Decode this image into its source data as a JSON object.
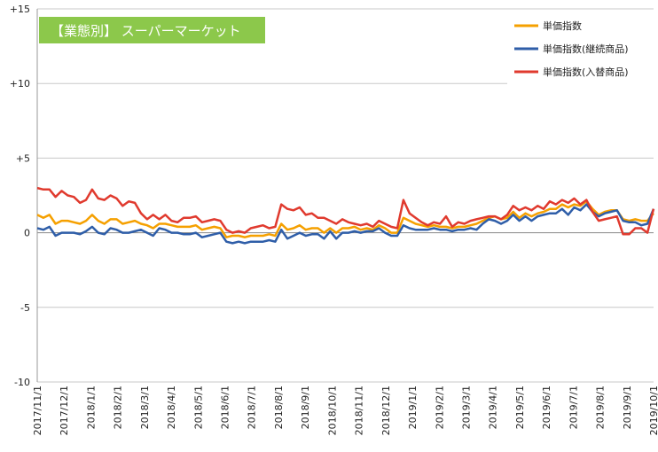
{
  "chart_data": {
    "type": "line",
    "title_box": {
      "label": "【業態別】 スーパーマーケット",
      "color": "#8cc84b"
    },
    "ylim": [
      -10,
      15
    ],
    "y_ticks": [
      {
        "value": 15,
        "label": "+15"
      },
      {
        "value": 10,
        "label": "+10"
      },
      {
        "value": 5,
        "label": "+5"
      },
      {
        "value": 0,
        "label": "0"
      },
      {
        "value": -5,
        "label": "-5"
      },
      {
        "value": -10,
        "label": "-10"
      }
    ],
    "x_tick_labels": [
      "2017/11/1",
      "2017/12/1",
      "2018/1/1",
      "2018/2/1",
      "2018/3/1",
      "2018/4/1",
      "2018/5/1",
      "2018/6/1",
      "2018/7/1",
      "2018/8/1",
      "2018/9/1",
      "2018/10/1",
      "2018/11/1",
      "2018/12/1",
      "2019/1/1",
      "2019/2/1",
      "2019/3/1",
      "2019/4/1",
      "2019/5/1",
      "2019/6/1",
      "2019/7/1",
      "2019/8/1",
      "2019/9/1",
      "2019/10/1"
    ],
    "legend": "top-right",
    "grid": "horizontal",
    "series": [
      {
        "name": "単価指数",
        "color": "#f5a000",
        "values": [
          1.2,
          1.0,
          1.2,
          0.6,
          0.8,
          0.8,
          0.7,
          0.6,
          0.8,
          1.2,
          0.8,
          0.6,
          0.9,
          0.9,
          0.6,
          0.7,
          0.8,
          0.6,
          0.5,
          0.3,
          0.6,
          0.6,
          0.5,
          0.4,
          0.4,
          0.4,
          0.5,
          0.2,
          0.3,
          0.4,
          0.3,
          -0.3,
          -0.2,
          -0.2,
          -0.3,
          -0.2,
          -0.2,
          -0.2,
          -0.1,
          -0.2,
          0.6,
          0.2,
          0.3,
          0.5,
          0.2,
          0.3,
          0.3,
          0.0,
          0.3,
          0.0,
          0.3,
          0.3,
          0.4,
          0.2,
          0.3,
          0.2,
          0.5,
          0.3,
          0.0,
          0.0,
          1.0,
          0.8,
          0.6,
          0.5,
          0.4,
          0.5,
          0.4,
          0.4,
          0.3,
          0.4,
          0.4,
          0.5,
          0.6,
          0.8,
          1.0,
          1.1,
          0.9,
          1.0,
          1.4,
          1.0,
          1.3,
          1.1,
          1.3,
          1.4,
          1.6,
          1.6,
          1.9,
          1.7,
          1.9,
          1.8,
          2.1,
          1.6,
          1.2,
          1.4,
          1.5,
          1.5,
          0.9,
          0.8,
          0.9,
          0.8,
          0.8,
          1.3
        ]
      },
      {
        "name": "単価指数(継続商品)",
        "color": "#2f5ea8",
        "values": [
          0.3,
          0.2,
          0.4,
          -0.2,
          0.0,
          0.0,
          0.0,
          -0.1,
          0.1,
          0.4,
          0.0,
          -0.1,
          0.3,
          0.2,
          0.0,
          0.0,
          0.1,
          0.2,
          0.0,
          -0.2,
          0.3,
          0.2,
          0.0,
          0.0,
          -0.1,
          -0.1,
          0.0,
          -0.3,
          -0.2,
          -0.1,
          0.0,
          -0.6,
          -0.7,
          -0.6,
          -0.7,
          -0.6,
          -0.6,
          -0.6,
          -0.5,
          -0.6,
          0.2,
          -0.4,
          -0.2,
          0.0,
          -0.2,
          -0.1,
          -0.1,
          -0.4,
          0.1,
          -0.4,
          0.0,
          0.0,
          0.1,
          0.0,
          0.1,
          0.1,
          0.3,
          0.0,
          -0.2,
          -0.2,
          0.5,
          0.3,
          0.2,
          0.2,
          0.2,
          0.3,
          0.2,
          0.2,
          0.1,
          0.2,
          0.2,
          0.3,
          0.2,
          0.6,
          0.9,
          0.8,
          0.6,
          0.8,
          1.2,
          0.8,
          1.1,
          0.8,
          1.1,
          1.2,
          1.3,
          1.3,
          1.6,
          1.2,
          1.7,
          1.5,
          1.9,
          1.4,
          1.1,
          1.3,
          1.4,
          1.5,
          0.8,
          0.7,
          0.7,
          0.5,
          0.6,
          1.6
        ]
      },
      {
        "name": "単価指数(入替商品)",
        "color": "#e03a2e",
        "values": [
          3.0,
          2.9,
          2.9,
          2.4,
          2.8,
          2.5,
          2.4,
          2.0,
          2.2,
          2.9,
          2.3,
          2.2,
          2.5,
          2.3,
          1.8,
          2.1,
          2.0,
          1.3,
          0.9,
          1.2,
          0.9,
          1.2,
          0.8,
          0.7,
          1.0,
          1.0,
          1.1,
          0.7,
          0.8,
          0.9,
          0.8,
          0.2,
          0.0,
          0.1,
          0.0,
          0.3,
          0.4,
          0.5,
          0.3,
          0.4,
          1.9,
          1.6,
          1.5,
          1.7,
          1.2,
          1.3,
          1.0,
          1.0,
          0.8,
          0.6,
          0.9,
          0.7,
          0.6,
          0.5,
          0.6,
          0.4,
          0.8,
          0.6,
          0.4,
          0.3,
          2.2,
          1.3,
          1.0,
          0.7,
          0.5,
          0.7,
          0.6,
          1.1,
          0.4,
          0.7,
          0.6,
          0.8,
          0.9,
          1.0,
          1.1,
          1.1,
          0.9,
          1.2,
          1.8,
          1.5,
          1.7,
          1.5,
          1.8,
          1.6,
          2.1,
          1.9,
          2.2,
          2.0,
          2.3,
          1.9,
          2.2,
          1.4,
          0.8,
          0.9,
          1.0,
          1.1,
          -0.1,
          -0.1,
          0.3,
          0.3,
          0.0,
          1.6
        ]
      }
    ]
  }
}
